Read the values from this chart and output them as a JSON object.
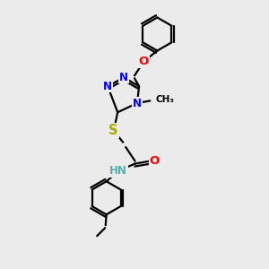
{
  "bg_color": "#ebebeb",
  "bond_color": "#000000",
  "bond_width": 1.6,
  "atom_colors": {
    "N": "#0000ff",
    "O": "#ff0000",
    "S": "#aaaa00",
    "C": "#000000",
    "H": "#5aacac"
  },
  "font_size": 8.5,
  "figsize": [
    3.0,
    3.0
  ],
  "dpi": 100
}
